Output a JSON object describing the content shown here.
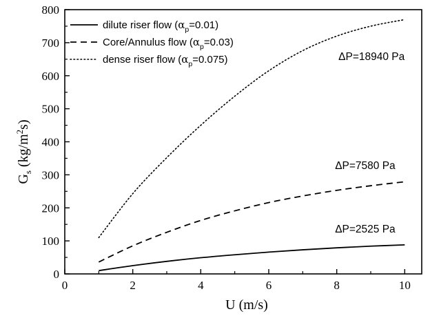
{
  "chart_data": {
    "type": "line",
    "xlabel": {
      "main": "U (m/s)"
    },
    "ylabel": {
      "main": "G",
      "sub": "s",
      "unit_pre": " (kg/m",
      "unit_sup": "2",
      "unit_post": "s)"
    },
    "xlim": [
      0,
      10.5
    ],
    "ylim": [
      0,
      800
    ],
    "xticks": [
      0,
      2,
      4,
      6,
      8,
      10
    ],
    "yticks": [
      0,
      100,
      200,
      300,
      400,
      500,
      600,
      700,
      800
    ],
    "legend_position": "top-left",
    "series": [
      {
        "name": "dilute riser flow",
        "legend_pre": "dilute riser flow (",
        "legend_alpha": "α",
        "legend_sub": "p",
        "legend_post": "=0.01)",
        "style": "solid",
        "x": [
          1,
          2,
          3,
          4,
          5,
          6,
          7,
          8,
          9,
          10
        ],
        "y": [
          10,
          25,
          38,
          49,
          58,
          66,
          73,
          79,
          84,
          88
        ]
      },
      {
        "name": "Core/Annulus flow",
        "legend_pre": "Core/Annulus flow (",
        "legend_alpha": "α",
        "legend_sub": "p",
        "legend_post": "=0.03)",
        "style": "dashed",
        "x": [
          1,
          2,
          3,
          4,
          5,
          6,
          7,
          8,
          9,
          10
        ],
        "y": [
          36,
          85,
          126,
          162,
          191,
          216,
          236,
          253,
          267,
          279
        ]
      },
      {
        "name": "dense riser flow",
        "legend_pre": "dense riser flow (",
        "legend_alpha": "α",
        "legend_sub": "p",
        "legend_post": "=0.075)",
        "style": "dotted",
        "x": [
          1,
          2,
          3,
          4,
          5,
          6,
          7,
          8,
          9,
          10
        ],
        "y": [
          110,
          243,
          352,
          450,
          538,
          615,
          676,
          720,
          750,
          770
        ]
      }
    ],
    "annotations": [
      {
        "text": "ΔP=18940 Pa",
        "x": 8.05,
        "y": 648
      },
      {
        "text": "ΔP=7580 Pa",
        "x": 7.95,
        "y": 318
      },
      {
        "text": "ΔP=2525 Pa",
        "x": 7.95,
        "y": 125
      }
    ]
  }
}
